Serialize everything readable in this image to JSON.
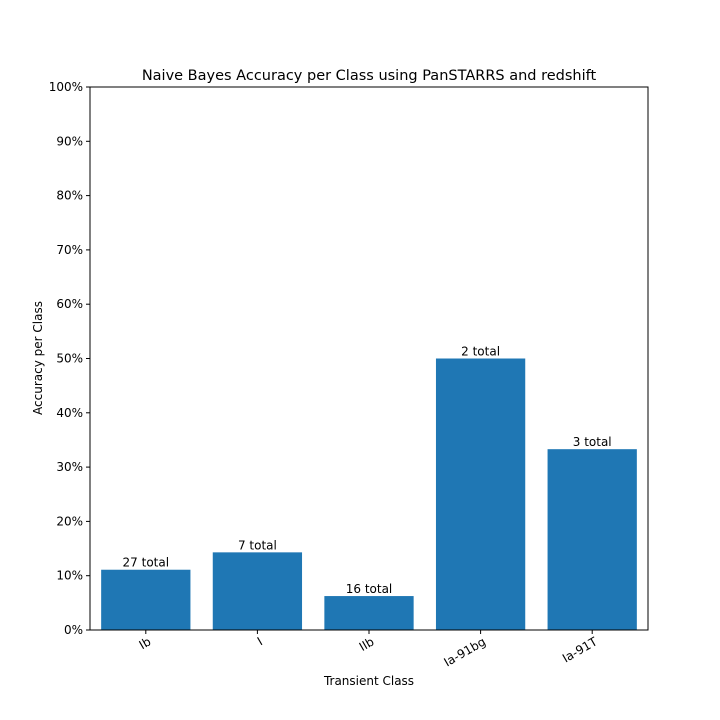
{
  "chart_data": {
    "type": "bar",
    "title": "Naive Bayes Accuracy per Class using PanSTARRS and redshift",
    "xlabel": "Transient Class",
    "ylabel": "Accuracy per Class",
    "categories": [
      "Ib",
      "I",
      "IIb",
      "Ia-91bg",
      "Ia-91T"
    ],
    "values": [
      11.1,
      14.3,
      6.25,
      50.0,
      33.3
    ],
    "bar_labels": [
      "27 total",
      "7 total",
      "16 total",
      "2 total",
      "3 total"
    ],
    "ylim": [
      0,
      100
    ],
    "yticks": [
      "0%",
      "10%",
      "20%",
      "30%",
      "40%",
      "50%",
      "60%",
      "70%",
      "80%",
      "90%",
      "100%"
    ],
    "grid": false,
    "bar_color": "#1f77b4"
  }
}
